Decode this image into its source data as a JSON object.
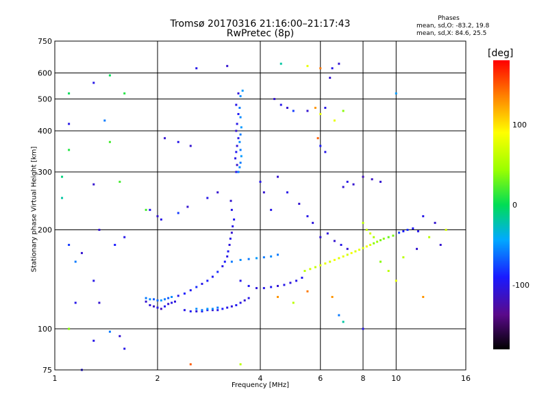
{
  "chart_data": {
    "type": "scatter",
    "title": "Tromsø 20170316 21:16:00–21:17:43",
    "subtitle": "RwPretec (8p)",
    "stats": {
      "heading": "Phases",
      "line1": "mean, sd,O: -83.2, 19.8",
      "line2": "mean, sd,X:  84.6, 25.5"
    },
    "xlabel": "Frequency [MHz]",
    "ylabel": "Stationary phase Virtual Height [km]",
    "x_scale": "log",
    "y_scale": "log",
    "xlim": [
      1,
      16
    ],
    "ylim": [
      75,
      750
    ],
    "x_ticks": [
      1,
      2,
      4,
      6,
      8,
      10,
      16
    ],
    "x_tick_labels": [
      "1",
      "2",
      "4",
      "6",
      "8",
      "10",
      "16"
    ],
    "x_grid": [
      2,
      4,
      6,
      8,
      10
    ],
    "y_ticks": [
      75,
      100,
      200,
      300,
      400,
      500,
      600,
      750
    ],
    "y_tick_labels": [
      "75",
      "100",
      "200",
      "300",
      "400",
      "500",
      "600",
      "750"
    ],
    "y_grid": [
      100,
      200,
      300,
      400,
      500,
      600
    ],
    "grid": true,
    "colorbar": {
      "label": "[deg]",
      "range": [
        -180,
        180
      ],
      "ticks": [
        100,
        0,
        -100
      ],
      "tick_labels": [
        "100",
        "0",
        "-100"
      ]
    },
    "series": [
      {
        "points": [
          [
            1.85,
            121,
            -110
          ],
          [
            1.9,
            118,
            -105
          ],
          [
            1.95,
            117,
            -115
          ],
          [
            2.0,
            116,
            -100
          ],
          [
            2.05,
            115,
            -120
          ],
          [
            2.1,
            117,
            -95
          ],
          [
            2.15,
            119,
            -110
          ],
          [
            2.2,
            120,
            -100
          ],
          [
            2.25,
            121,
            -105
          ],
          [
            1.85,
            124,
            -60
          ],
          [
            1.9,
            123,
            -55
          ],
          [
            1.95,
            123,
            -70
          ],
          [
            2.0,
            122,
            -65
          ],
          [
            2.05,
            122,
            -50
          ],
          [
            2.1,
            123,
            -60
          ],
          [
            2.15,
            124,
            -70
          ],
          [
            2.2,
            125,
            -55
          ],
          [
            2.3,
            126,
            -100
          ],
          [
            2.4,
            128,
            -90
          ],
          [
            2.5,
            131,
            -95
          ],
          [
            2.6,
            134,
            -85
          ],
          [
            2.7,
            137,
            -100
          ],
          [
            2.8,
            140,
            -90
          ],
          [
            2.9,
            144,
            -95
          ],
          [
            3.0,
            149,
            -85
          ],
          [
            3.1,
            155,
            -100
          ],
          [
            3.15,
            160,
            -90
          ],
          [
            3.2,
            166,
            -100
          ],
          [
            3.22,
            172,
            -95
          ],
          [
            3.25,
            180,
            -105
          ],
          [
            3.27,
            188,
            -100
          ],
          [
            3.3,
            196,
            -110
          ],
          [
            3.32,
            205,
            -100
          ],
          [
            3.35,
            215,
            -95
          ],
          [
            3.3,
            230,
            -100
          ],
          [
            3.28,
            245,
            -110
          ],
          [
            2.4,
            114,
            -100
          ],
          [
            2.5,
            113,
            -95
          ],
          [
            2.6,
            113,
            -105
          ],
          [
            2.7,
            113,
            -100
          ],
          [
            2.8,
            114,
            -95
          ],
          [
            2.9,
            114,
            -110
          ],
          [
            3.0,
            114,
            -100
          ],
          [
            3.1,
            115,
            -90
          ],
          [
            3.2,
            116,
            -100
          ],
          [
            3.3,
            117,
            -105
          ],
          [
            3.4,
            118,
            -95
          ],
          [
            3.5,
            120,
            -100
          ],
          [
            3.6,
            122,
            -110
          ],
          [
            3.7,
            124,
            -100
          ],
          [
            2.6,
            115,
            -55
          ],
          [
            2.7,
            114,
            -60
          ],
          [
            2.8,
            115,
            -50
          ],
          [
            2.9,
            115,
            -55
          ],
          [
            3.0,
            116,
            -60
          ],
          [
            3.5,
            140,
            -100
          ],
          [
            3.7,
            135,
            -95
          ],
          [
            3.9,
            133,
            -105
          ],
          [
            4.1,
            133,
            -100
          ],
          [
            4.3,
            134,
            -95
          ],
          [
            4.5,
            135,
            -110
          ],
          [
            4.7,
            136,
            -100
          ],
          [
            4.9,
            138,
            -105
          ],
          [
            5.1,
            140,
            -100
          ],
          [
            5.3,
            143,
            -95
          ],
          [
            3.3,
            160,
            -60
          ],
          [
            3.5,
            162,
            -55
          ],
          [
            3.7,
            163,
            -60
          ],
          [
            3.9,
            164,
            -50
          ],
          [
            4.1,
            165,
            -60
          ],
          [
            4.3,
            166,
            -55
          ],
          [
            4.5,
            168,
            -60
          ],
          [
            3.45,
            300,
            -60
          ],
          [
            3.48,
            310,
            -55
          ],
          [
            3.5,
            320,
            -60
          ],
          [
            3.52,
            335,
            -50
          ],
          [
            3.5,
            350,
            -60
          ],
          [
            3.48,
            370,
            -55
          ],
          [
            3.5,
            390,
            -60
          ],
          [
            3.52,
            410,
            -50
          ],
          [
            3.5,
            440,
            -55
          ],
          [
            3.48,
            470,
            -60
          ],
          [
            3.5,
            510,
            -55
          ],
          [
            3.55,
            530,
            -50
          ],
          [
            3.4,
            300,
            -100
          ],
          [
            3.42,
            315,
            -110
          ],
          [
            3.38,
            330,
            -100
          ],
          [
            3.4,
            345,
            -95
          ],
          [
            3.42,
            360,
            -105
          ],
          [
            3.45,
            380,
            -100
          ],
          [
            3.4,
            400,
            -110
          ],
          [
            3.42,
            420,
            -100
          ],
          [
            3.45,
            450,
            -95
          ],
          [
            3.4,
            480,
            -100
          ],
          [
            3.45,
            520,
            -105
          ],
          [
            5.4,
            150,
            60
          ],
          [
            5.6,
            152,
            70
          ],
          [
            5.8,
            154,
            65
          ],
          [
            6.0,
            156,
            75
          ],
          [
            6.2,
            158,
            80
          ],
          [
            6.4,
            160,
            70
          ],
          [
            6.6,
            162,
            85
          ],
          [
            6.8,
            164,
            75
          ],
          [
            7.0,
            166,
            80
          ],
          [
            7.2,
            168,
            70
          ],
          [
            7.4,
            170,
            85
          ],
          [
            7.6,
            172,
            75
          ],
          [
            7.8,
            174,
            80
          ],
          [
            8.0,
            176,
            70
          ],
          [
            8.2,
            178,
            85
          ],
          [
            8.4,
            180,
            75
          ],
          [
            8.6,
            182,
            40
          ],
          [
            8.8,
            184,
            45
          ],
          [
            9.0,
            186,
            35
          ],
          [
            9.2,
            188,
            40
          ],
          [
            9.5,
            190,
            30
          ],
          [
            9.8,
            192,
            35
          ],
          [
            10.2,
            196,
            -80
          ],
          [
            10.5,
            198,
            -90
          ],
          [
            10.8,
            200,
            -85
          ],
          [
            11.2,
            202,
            -95
          ],
          [
            11.6,
            198,
            -100
          ],
          [
            6.0,
            190,
            -110
          ],
          [
            6.3,
            195,
            -105
          ],
          [
            6.6,
            185,
            -110
          ],
          [
            6.9,
            180,
            -100
          ],
          [
            7.2,
            175,
            -110
          ],
          [
            8.0,
            210,
            60
          ],
          [
            8.2,
            200,
            65
          ],
          [
            8.4,
            195,
            70
          ],
          [
            8.6,
            190,
            55
          ],
          [
            7.0,
            270,
            -110
          ],
          [
            7.2,
            280,
            -100
          ],
          [
            7.5,
            275,
            -110
          ],
          [
            8.0,
            290,
            -120
          ],
          [
            8.5,
            285,
            -115
          ],
          [
            9.0,
            280,
            -110
          ],
          [
            6.0,
            360,
            -90
          ],
          [
            6.2,
            345,
            -100
          ],
          [
            5.9,
            380,
            150
          ],
          [
            6.5,
            620,
            -100
          ],
          [
            6.8,
            640,
            -110
          ],
          [
            1.3,
            560,
            -100
          ],
          [
            1.45,
            590,
            0
          ],
          [
            1.1,
            520,
            0
          ],
          [
            1.6,
            520,
            10
          ],
          [
            2.1,
            380,
            -110
          ],
          [
            2.3,
            370,
            -100
          ],
          [
            2.5,
            360,
            -110
          ],
          [
            2.6,
            620,
            -100
          ],
          [
            3.2,
            630,
            -110
          ],
          [
            1.1,
            420,
            -100
          ],
          [
            1.4,
            430,
            -60
          ],
          [
            1.45,
            370,
            20
          ],
          [
            1.1,
            350,
            10
          ],
          [
            1.05,
            290,
            -10
          ],
          [
            1.05,
            250,
            -20
          ],
          [
            1.3,
            275,
            -110
          ],
          [
            1.55,
            280,
            20
          ],
          [
            1.1,
            180,
            -80
          ],
          [
            1.2,
            170,
            -110
          ],
          [
            1.15,
            160,
            -60
          ],
          [
            1.3,
            140,
            -100
          ],
          [
            1.35,
            200,
            -110
          ],
          [
            1.5,
            180,
            -90
          ],
          [
            1.6,
            190,
            -100
          ],
          [
            1.1,
            100,
            40
          ],
          [
            1.15,
            120,
            -100
          ],
          [
            1.35,
            120,
            -110
          ],
          [
            1.3,
            92,
            -100
          ],
          [
            1.45,
            98,
            -60
          ],
          [
            1.55,
            95,
            -110
          ],
          [
            1.6,
            87,
            -100
          ],
          [
            1.2,
            75,
            -100
          ],
          [
            1.9,
            230,
            -100
          ],
          [
            1.85,
            230,
            20
          ],
          [
            2.0,
            220,
            -110
          ],
          [
            2.05,
            215,
            -100
          ],
          [
            2.3,
            225,
            -80
          ],
          [
            2.45,
            235,
            -110
          ],
          [
            2.8,
            250,
            -100
          ],
          [
            3.0,
            260,
            -110
          ],
          [
            4.0,
            280,
            -100
          ],
          [
            4.1,
            260,
            -110
          ],
          [
            4.3,
            230,
            -100
          ],
          [
            4.5,
            290,
            -110
          ],
          [
            4.8,
            260,
            -100
          ],
          [
            5.2,
            240,
            -110
          ],
          [
            5.5,
            220,
            -100
          ],
          [
            5.7,
            210,
            -105
          ],
          [
            4.4,
            500,
            -110
          ],
          [
            4.6,
            480,
            -100
          ],
          [
            4.8,
            470,
            -110
          ],
          [
            5.0,
            460,
            -80
          ],
          [
            5.5,
            460,
            -110
          ],
          [
            5.8,
            470,
            130
          ],
          [
            6.2,
            470,
            -100
          ],
          [
            6.0,
            450,
            80
          ],
          [
            4.6,
            640,
            -20
          ],
          [
            5.5,
            630,
            80
          ],
          [
            6.0,
            620,
            140
          ],
          [
            6.4,
            580,
            -110
          ],
          [
            6.6,
            430,
            80
          ],
          [
            7.0,
            460,
            40
          ],
          [
            10.0,
            520,
            -50
          ],
          [
            12.0,
            220,
            -100
          ],
          [
            13.0,
            210,
            -110
          ],
          [
            12.5,
            190,
            60
          ],
          [
            14.0,
            200,
            70
          ],
          [
            13.5,
            180,
            -110
          ],
          [
            11.5,
            175,
            -110
          ],
          [
            10.5,
            165,
            60
          ],
          [
            9.0,
            160,
            40
          ],
          [
            9.5,
            150,
            60
          ],
          [
            10.0,
            140,
            80
          ],
          [
            12.0,
            125,
            130
          ],
          [
            8.0,
            100,
            -100
          ],
          [
            6.8,
            110,
            -60
          ],
          [
            7.0,
            105,
            -20
          ],
          [
            2.5,
            78,
            150
          ],
          [
            3.5,
            78,
            60
          ],
          [
            5.0,
            120,
            60
          ],
          [
            4.5,
            125,
            130
          ],
          [
            5.5,
            130,
            140
          ],
          [
            6.5,
            125,
            130
          ]
        ]
      }
    ]
  }
}
